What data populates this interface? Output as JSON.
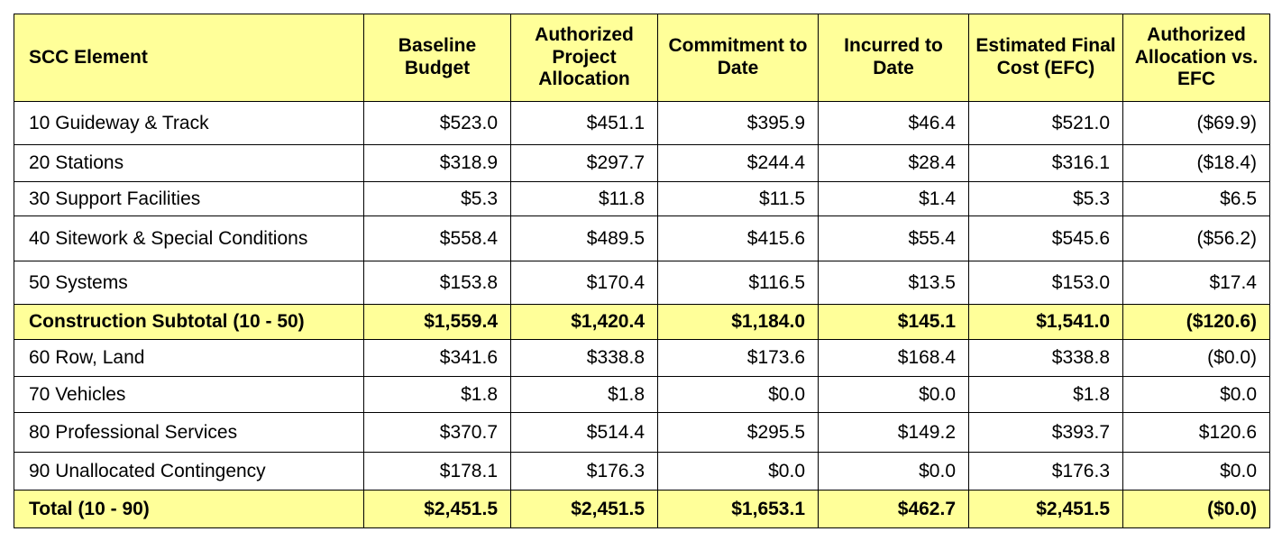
{
  "table": {
    "header": [
      "SCC Element",
      "Baseline Budget",
      "Authorized Project Allocation",
      "Commitment to Date",
      "Incurred to Date",
      "Estimated Final Cost (EFC)",
      "Authorized Allocation vs. EFC"
    ],
    "rows": [
      [
        "10 Guideway & Track",
        "$523.0",
        "$451.1",
        "$395.9",
        "$46.4",
        "$521.0",
        "($69.9)"
      ],
      [
        "20 Stations",
        "$318.9",
        "$297.7",
        "$244.4",
        "$28.4",
        "$316.1",
        "($18.4)"
      ],
      [
        "30 Support Facilities",
        "$5.3",
        "$11.8",
        "$11.5",
        "$1.4",
        "$5.3",
        "$6.5"
      ],
      [
        "40 Sitework & Special Conditions",
        "$558.4",
        "$489.5",
        "$415.6",
        "$55.4",
        "$545.6",
        "($56.2)"
      ],
      [
        "50  Systems",
        "$153.8",
        "$170.4",
        "$116.5",
        "$13.5",
        "$153.0",
        "$17.4"
      ],
      [
        "Construction Subtotal (10 - 50)",
        "$1,559.4",
        "$1,420.4",
        "$1,184.0",
        "$145.1",
        "$1,541.0",
        "($120.6)"
      ],
      [
        "60 Row, Land",
        "$341.6",
        "$338.8",
        "$173.6",
        "$168.4",
        "$338.8",
        "($0.0)"
      ],
      [
        "70 Vehicles",
        "$1.8",
        "$1.8",
        "$0.0",
        "$0.0",
        "$1.8",
        "$0.0"
      ],
      [
        "80 Professional Services",
        "$370.7",
        "$514.4",
        "$295.5",
        "$149.2",
        "$393.7",
        "$120.6"
      ],
      [
        "90 Unallocated Contingency",
        "$178.1",
        "$176.3",
        "$0.0",
        "$0.0",
        "$176.3",
        "$0.0"
      ],
      [
        "Total (10 - 90)",
        "$2,451.5",
        "$2,451.5",
        "$1,653.1",
        "$462.7",
        "$2,451.5",
        "($0.0)"
      ]
    ]
  }
}
